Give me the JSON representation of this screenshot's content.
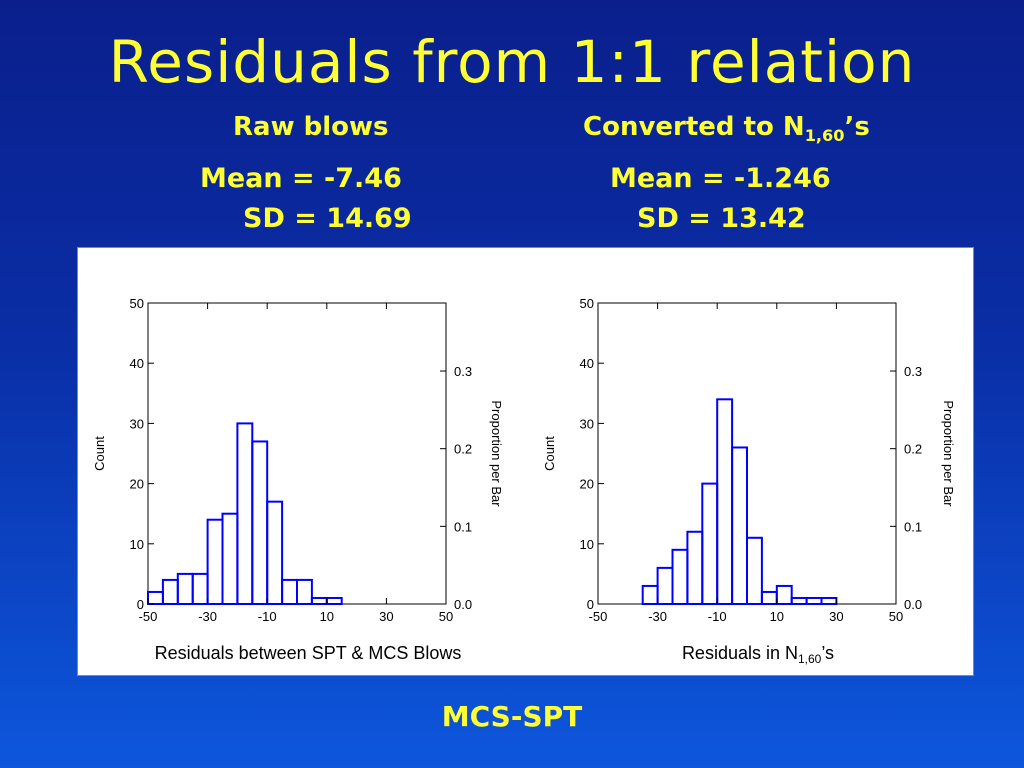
{
  "slide": {
    "title": "Residuals from 1:1 relation",
    "left_header": "Raw blows",
    "left_mean": "Mean = -7.46",
    "left_sd": "SD = 14.69",
    "right_header_main": "Converted to N",
    "right_header_sub": "1,60",
    "right_header_tail": "’s",
    "right_mean": "Mean = -1.246",
    "right_sd": "SD = 13.42",
    "footer": "MCS-SPT"
  },
  "colors": {
    "background_top": "#0a1f8c",
    "background_bottom": "#0d57dd",
    "text_accent": "#ffff33",
    "bar_stroke": "#0000ff"
  },
  "chart_data": [
    {
      "type": "bar",
      "xlabel": "Residuals between SPT & MCS Blows",
      "ylabel": "Count",
      "ylabel_right": "Proportion per Bar",
      "bin_edges": [
        -50,
        -45,
        -40,
        -35,
        -30,
        -25,
        -20,
        -15,
        -10,
        -5,
        0,
        5,
        10,
        15,
        20,
        25,
        30,
        35,
        40,
        45,
        50
      ],
      "values": [
        2,
        4,
        5,
        5,
        14,
        15,
        30,
        27,
        17,
        4,
        4,
        1,
        1,
        0,
        0,
        0,
        0,
        0,
        0,
        0
      ],
      "xlim": [
        -50,
        50
      ],
      "ylim": [
        0,
        50
      ],
      "x_ticks": [
        "-50",
        "-30",
        "-10",
        "10",
        "30",
        "50"
      ],
      "y_ticks": [
        "0",
        "10",
        "20",
        "30",
        "40",
        "50"
      ],
      "right_ticks": [
        "0.0",
        "0.1",
        "0.2",
        "0.3"
      ],
      "right_tick_values": [
        0,
        0.1,
        0.2,
        0.3
      ],
      "total_count": 129
    },
    {
      "type": "bar",
      "xlabel_main": "Residuals in N",
      "xlabel_sub": "1,60",
      "xlabel_tail": "’s",
      "ylabel": "Count",
      "ylabel_right": "Proportion per Bar",
      "bin_edges": [
        -50,
        -45,
        -40,
        -35,
        -30,
        -25,
        -20,
        -15,
        -10,
        -5,
        0,
        5,
        10,
        15,
        20,
        25,
        30,
        35,
        40,
        45,
        50
      ],
      "values": [
        0,
        0,
        0,
        3,
        6,
        9,
        12,
        20,
        34,
        26,
        11,
        2,
        3,
        1,
        1,
        1,
        0,
        0,
        0,
        0
      ],
      "xlim": [
        -50,
        50
      ],
      "ylim": [
        0,
        50
      ],
      "x_ticks": [
        "-50",
        "-30",
        "-10",
        "10",
        "30",
        "50"
      ],
      "y_ticks": [
        "0",
        "10",
        "20",
        "30",
        "40",
        "50"
      ],
      "right_ticks": [
        "0.0",
        "0.1",
        "0.2",
        "0.3"
      ],
      "right_tick_values": [
        0,
        0.1,
        0.2,
        0.3
      ],
      "total_count": 129
    }
  ]
}
